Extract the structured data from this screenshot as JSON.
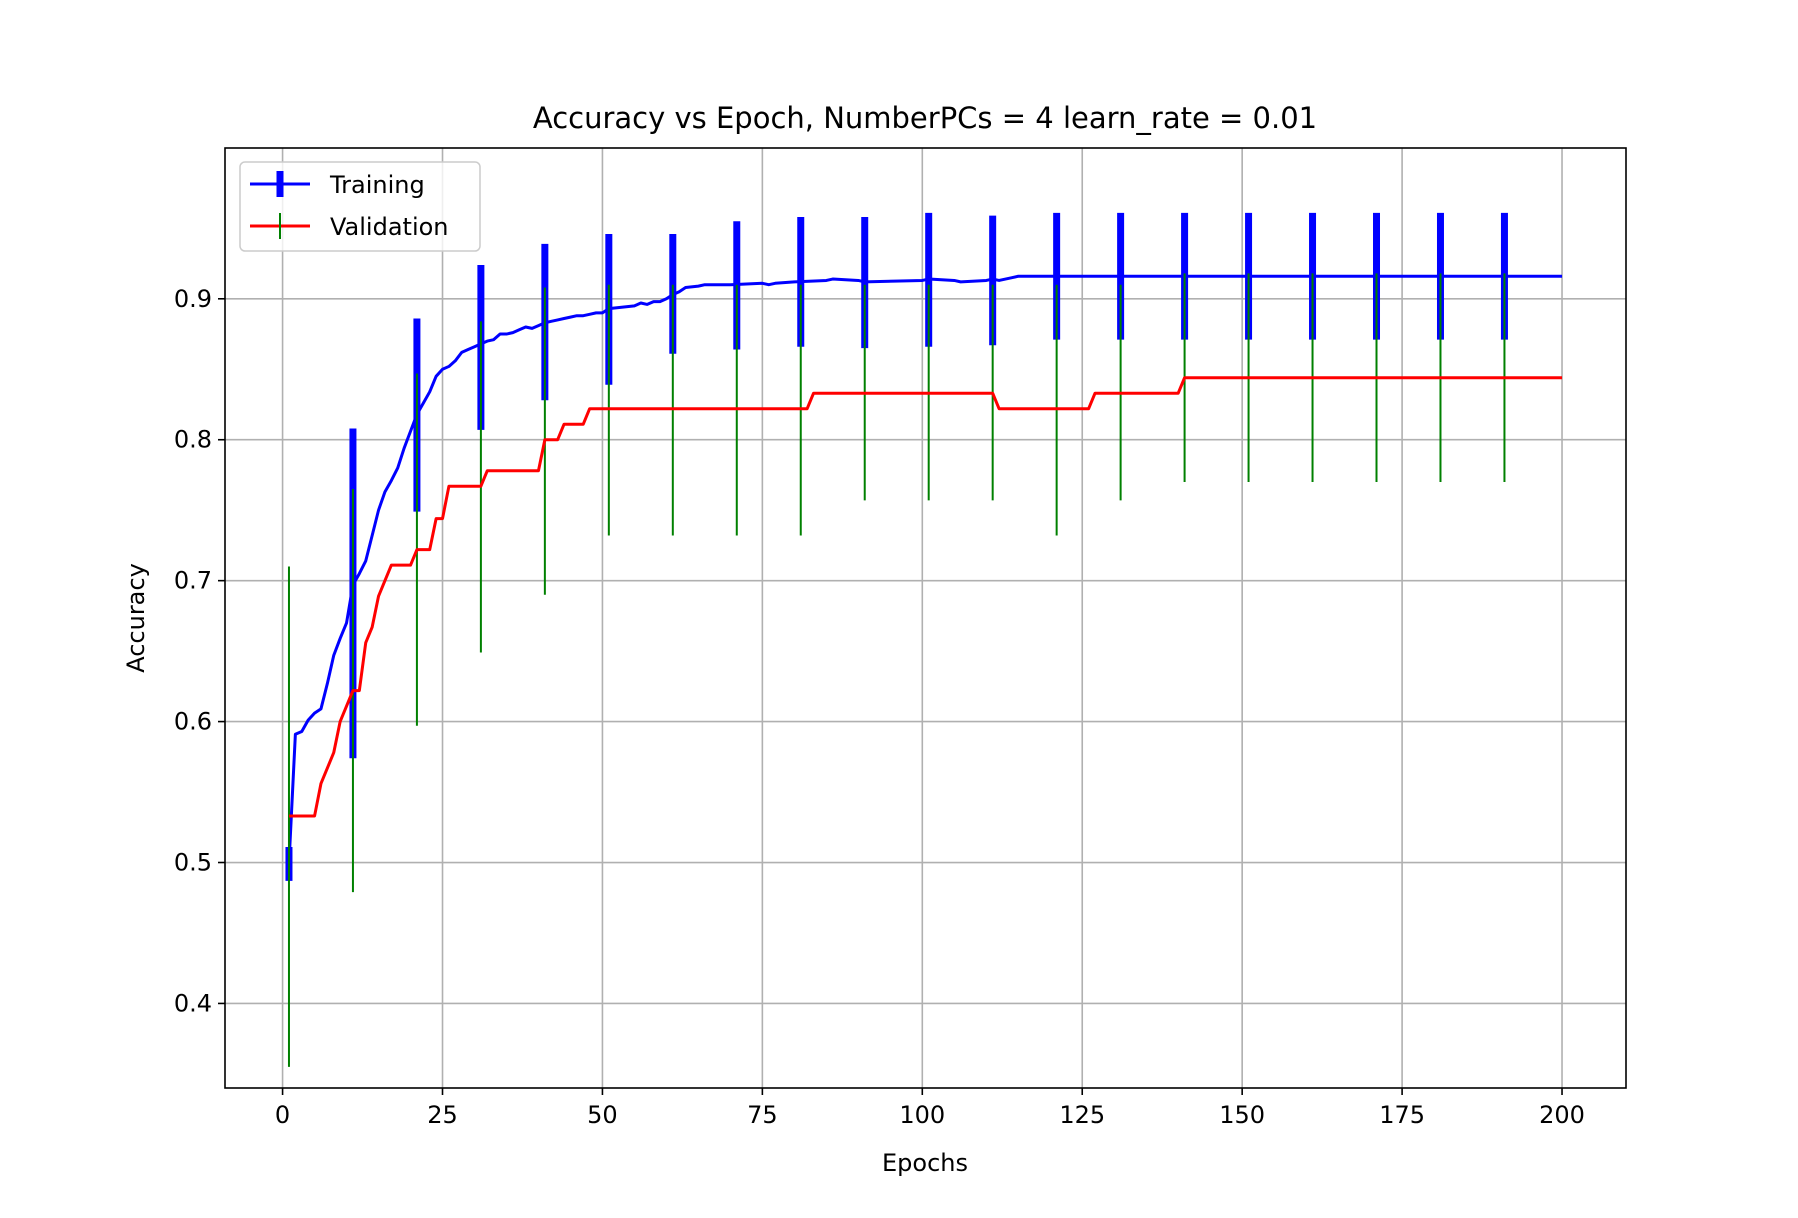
{
  "chart_data": {
    "type": "line",
    "title": "Accuracy vs Epoch, NumberPCs = 4 learn_rate = 0.01",
    "xlabel": "Epochs",
    "ylabel": "Accuracy",
    "xlim": [
      -9,
      210
    ],
    "ylim": [
      0.34,
      1.007
    ],
    "xticks": [
      0,
      25,
      50,
      75,
      100,
      125,
      150,
      175,
      200
    ],
    "xtick_labels": [
      "0",
      "25",
      "50",
      "75",
      "100",
      "125",
      "150",
      "175",
      "200"
    ],
    "yticks": [
      0.4,
      0.5,
      0.6,
      0.7,
      0.8,
      0.9
    ],
    "ytick_labels": [
      "0.4",
      "0.5",
      "0.6",
      "0.7",
      "0.8",
      "0.9"
    ],
    "grid": true,
    "legend_position": "top-left",
    "series": [
      {
        "name": "Training",
        "color": "#0000ff",
        "x": [
          1,
          2,
          3,
          4,
          5,
          6,
          7,
          8,
          9,
          10,
          11,
          12,
          13,
          14,
          15,
          16,
          17,
          18,
          19,
          20,
          21,
          22,
          23,
          24,
          25,
          26,
          27,
          28,
          29,
          30,
          31,
          32,
          33,
          34,
          35,
          36,
          37,
          38,
          39,
          40,
          41,
          42,
          43,
          44,
          45,
          46,
          47,
          48,
          49,
          50,
          51,
          53,
          55,
          56,
          57,
          58,
          59,
          60,
          61,
          62,
          63,
          65,
          66,
          70,
          75,
          76,
          77,
          80,
          85,
          86,
          90,
          91,
          100,
          101,
          105,
          106,
          110,
          111,
          112,
          113,
          114,
          115,
          200
        ],
        "values": [
          0.499,
          0.591,
          0.593,
          0.601,
          0.606,
          0.609,
          0.627,
          0.647,
          0.659,
          0.67,
          0.697,
          0.705,
          0.714,
          0.732,
          0.75,
          0.763,
          0.771,
          0.78,
          0.794,
          0.806,
          0.818,
          0.826,
          0.834,
          0.845,
          0.85,
          0.852,
          0.856,
          0.862,
          0.864,
          0.866,
          0.868,
          0.87,
          0.871,
          0.875,
          0.875,
          0.876,
          0.878,
          0.88,
          0.879,
          0.881,
          0.883,
          0.884,
          0.885,
          0.886,
          0.887,
          0.888,
          0.888,
          0.889,
          0.89,
          0.89,
          0.893,
          0.894,
          0.895,
          0.897,
          0.896,
          0.898,
          0.898,
          0.9,
          0.903,
          0.905,
          0.908,
          0.909,
          0.91,
          0.91,
          0.911,
          0.91,
          0.911,
          0.912,
          0.913,
          0.914,
          0.913,
          0.912,
          0.913,
          0.914,
          0.913,
          0.912,
          0.913,
          0.914,
          0.913,
          0.914,
          0.915,
          0.916,
          0.916
        ],
        "error_bars": {
          "x": [
            1,
            11,
            21,
            31,
            41,
            51,
            61,
            71,
            81,
            91,
            101,
            111,
            121,
            131,
            141,
            151,
            161,
            171,
            181,
            191
          ],
          "low": [
            0.487,
            0.574,
            0.749,
            0.807,
            0.828,
            0.839,
            0.861,
            0.864,
            0.866,
            0.865,
            0.866,
            0.867,
            0.871,
            0.871,
            0.871,
            0.871,
            0.871,
            0.871,
            0.871,
            0.871
          ],
          "high": [
            0.511,
            0.808,
            0.886,
            0.924,
            0.939,
            0.946,
            0.946,
            0.955,
            0.958,
            0.958,
            0.961,
            0.959,
            0.961,
            0.961,
            0.961,
            0.961,
            0.961,
            0.961,
            0.961,
            0.961
          ]
        }
      },
      {
        "name": "Validation",
        "color": "#ff0000",
        "x": [
          1,
          5,
          6,
          8,
          9,
          10,
          11,
          12,
          13,
          14,
          15,
          16,
          17,
          20,
          21,
          23,
          24,
          25,
          26,
          31,
          32,
          40,
          41,
          43,
          44,
          47,
          48,
          82,
          83,
          111,
          112,
          126,
          127,
          140,
          141,
          200
        ],
        "values": [
          0.533,
          0.533,
          0.556,
          0.578,
          0.6,
          0.611,
          0.622,
          0.622,
          0.656,
          0.667,
          0.689,
          0.7,
          0.711,
          0.711,
          0.722,
          0.722,
          0.744,
          0.744,
          0.767,
          0.767,
          0.778,
          0.778,
          0.8,
          0.8,
          0.811,
          0.811,
          0.822,
          0.822,
          0.833,
          0.833,
          0.822,
          0.822,
          0.833,
          0.833,
          0.844,
          0.844
        ],
        "error_bars": {
          "x": [
            1,
            11,
            21,
            31,
            41,
            51,
            61,
            71,
            81,
            91,
            101,
            111,
            121,
            131,
            141,
            151,
            161,
            171,
            181,
            191
          ],
          "low": [
            0.355,
            0.479,
            0.597,
            0.649,
            0.69,
            0.732,
            0.732,
            0.732,
            0.732,
            0.757,
            0.757,
            0.757,
            0.732,
            0.757,
            0.77,
            0.77,
            0.77,
            0.77,
            0.77,
            0.77
          ],
          "high": [
            0.71,
            0.765,
            0.847,
            0.884,
            0.908,
            0.91,
            0.91,
            0.91,
            0.91,
            0.91,
            0.91,
            0.91,
            0.91,
            0.91,
            0.918,
            0.918,
            0.918,
            0.918,
            0.918,
            0.918
          ]
        }
      }
    ]
  }
}
